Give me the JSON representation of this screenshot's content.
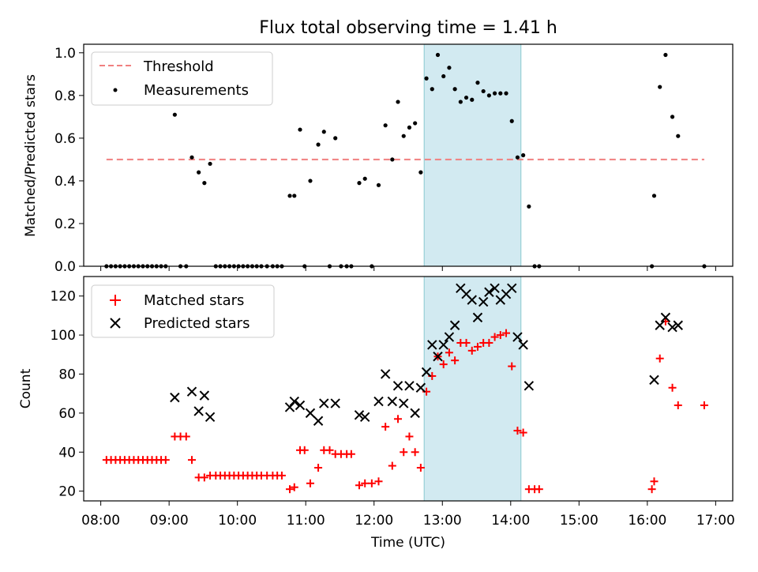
{
  "figure": {
    "title": "Flux total observing time = 1.41 h"
  },
  "chart_data": [
    {
      "type": "scatter",
      "ylabel": "Matched/Predicted stars",
      "xlabel": "",
      "xlim": [
        "07:45",
        "17:15"
      ],
      "ylim": [
        0,
        1.04
      ],
      "yticks": [
        "0.0",
        "0.2",
        "0.4",
        "0.6",
        "0.8",
        "1.0"
      ],
      "highlight_band": {
        "x_start": "12:44",
        "x_end": "14:09",
        "color": "#add8e6"
      },
      "threshold": {
        "name": "Threshold",
        "value": 0.5,
        "x_start": "08:05",
        "x_end": "16:50",
        "color": "#f08080",
        "style": "dashed"
      },
      "legend": {
        "placement": "top-left",
        "entries": [
          "Threshold",
          "Measurements"
        ]
      },
      "series": [
        {
          "name": "Measurements",
          "color": "#000000",
          "points": [
            [
              "08:05",
              0
            ],
            [
              "08:09",
              0
            ],
            [
              "08:13",
              0
            ],
            [
              "08:17",
              0
            ],
            [
              "08:21",
              0
            ],
            [
              "08:25",
              0
            ],
            [
              "08:29",
              0
            ],
            [
              "08:33",
              0
            ],
            [
              "08:37",
              0
            ],
            [
              "08:41",
              0
            ],
            [
              "08:45",
              0
            ],
            [
              "08:49",
              0
            ],
            [
              "08:53",
              0
            ],
            [
              "08:57",
              0
            ],
            [
              "09:05",
              0.71
            ],
            [
              "09:10",
              0
            ],
            [
              "09:15",
              0
            ],
            [
              "09:20",
              0.51
            ],
            [
              "09:26",
              0.44
            ],
            [
              "09:31",
              0.39
            ],
            [
              "09:36",
              0.48
            ],
            [
              "09:41",
              0
            ],
            [
              "09:45",
              0
            ],
            [
              "09:49",
              0
            ],
            [
              "09:53",
              0
            ],
            [
              "09:57",
              0
            ],
            [
              "10:01",
              0
            ],
            [
              "10:05",
              0
            ],
            [
              "10:09",
              0
            ],
            [
              "10:13",
              0
            ],
            [
              "10:17",
              0
            ],
            [
              "10:21",
              0
            ],
            [
              "10:26",
              0
            ],
            [
              "10:31",
              0
            ],
            [
              "10:35",
              0
            ],
            [
              "10:39",
              0
            ],
            [
              "10:46",
              0.33
            ],
            [
              "10:50",
              0.33
            ],
            [
              "10:55",
              0.64
            ],
            [
              "10:59",
              0
            ],
            [
              "11:04",
              0.4
            ],
            [
              "11:11",
              0.57
            ],
            [
              "11:16",
              0.63
            ],
            [
              "11:21",
              0
            ],
            [
              "11:26",
              0.6
            ],
            [
              "11:31",
              0
            ],
            [
              "11:36",
              0
            ],
            [
              "11:40",
              0
            ],
            [
              "11:47",
              0.39
            ],
            [
              "11:52",
              0.41
            ],
            [
              "11:58",
              0
            ],
            [
              "12:04",
              0.38
            ],
            [
              "12:10",
              0.66
            ],
            [
              "12:16",
              0.5
            ],
            [
              "12:21",
              0.77
            ],
            [
              "12:26",
              0.61
            ],
            [
              "12:31",
              0.65
            ],
            [
              "12:36",
              0.67
            ],
            [
              "12:41",
              0.44
            ],
            [
              "12:46",
              0.88
            ],
            [
              "12:51",
              0.83
            ],
            [
              "12:56",
              0.99
            ],
            [
              "13:01",
              0.89
            ],
            [
              "13:06",
              0.93
            ],
            [
              "13:11",
              0.83
            ],
            [
              "13:16",
              0.77
            ],
            [
              "13:21",
              0.79
            ],
            [
              "13:26",
              0.78
            ],
            [
              "13:31",
              0.86
            ],
            [
              "13:36",
              0.82
            ],
            [
              "13:41",
              0.8
            ],
            [
              "13:46",
              0.81
            ],
            [
              "13:51",
              0.81
            ],
            [
              "13:56",
              0.81
            ],
            [
              "14:01",
              0.68
            ],
            [
              "14:06",
              0.51
            ],
            [
              "14:11",
              0.52
            ],
            [
              "14:16",
              0.28
            ],
            [
              "14:21",
              0
            ],
            [
              "14:25",
              0
            ],
            [
              "16:04",
              0
            ],
            [
              "16:06",
              0.33
            ],
            [
              "16:11",
              0.84
            ],
            [
              "16:16",
              0.99
            ],
            [
              "16:22",
              0.7
            ],
            [
              "16:27",
              0.61
            ],
            [
              "16:50",
              0
            ]
          ]
        }
      ]
    },
    {
      "type": "scatter",
      "ylabel": "Count",
      "xlabel": "Time (UTC)",
      "xlim": [
        "07:45",
        "17:15"
      ],
      "ylim": [
        15,
        130
      ],
      "yticks": [
        "20",
        "40",
        "60",
        "80",
        "100",
        "120"
      ],
      "xticks": [
        "08:00",
        "09:00",
        "10:00",
        "11:00",
        "12:00",
        "13:00",
        "14:00",
        "15:00",
        "16:00",
        "17:00"
      ],
      "highlight_band": {
        "x_start": "12:44",
        "x_end": "14:09",
        "color": "#add8e6"
      },
      "legend": {
        "placement": "top-left",
        "entries": [
          "Matched stars",
          "Predicted stars"
        ]
      },
      "series": [
        {
          "name": "Matched stars",
          "marker": "plus",
          "color": "#ff0000",
          "points": [
            [
              "08:05",
              36
            ],
            [
              "08:09",
              36
            ],
            [
              "08:13",
              36
            ],
            [
              "08:17",
              36
            ],
            [
              "08:21",
              36
            ],
            [
              "08:25",
              36
            ],
            [
              "08:29",
              36
            ],
            [
              "08:33",
              36
            ],
            [
              "08:37",
              36
            ],
            [
              "08:41",
              36
            ],
            [
              "08:45",
              36
            ],
            [
              "08:49",
              36
            ],
            [
              "08:53",
              36
            ],
            [
              "08:57",
              36
            ],
            [
              "09:05",
              48
            ],
            [
              "09:10",
              48
            ],
            [
              "09:15",
              48
            ],
            [
              "09:20",
              36
            ],
            [
              "09:26",
              27
            ],
            [
              "09:31",
              27
            ],
            [
              "09:36",
              28
            ],
            [
              "09:41",
              28
            ],
            [
              "09:45",
              28
            ],
            [
              "09:49",
              28
            ],
            [
              "09:53",
              28
            ],
            [
              "09:57",
              28
            ],
            [
              "10:01",
              28
            ],
            [
              "10:05",
              28
            ],
            [
              "10:09",
              28
            ],
            [
              "10:13",
              28
            ],
            [
              "10:17",
              28
            ],
            [
              "10:21",
              28
            ],
            [
              "10:26",
              28
            ],
            [
              "10:31",
              28
            ],
            [
              "10:35",
              28
            ],
            [
              "10:39",
              28
            ],
            [
              "10:46",
              21
            ],
            [
              "10:50",
              22
            ],
            [
              "10:55",
              41
            ],
            [
              "10:59",
              41
            ],
            [
              "11:04",
              24
            ],
            [
              "11:11",
              32
            ],
            [
              "11:16",
              41
            ],
            [
              "11:21",
              41
            ],
            [
              "11:26",
              39
            ],
            [
              "11:31",
              39
            ],
            [
              "11:36",
              39
            ],
            [
              "11:40",
              39
            ],
            [
              "11:47",
              23
            ],
            [
              "11:52",
              24
            ],
            [
              "11:58",
              24
            ],
            [
              "12:04",
              25
            ],
            [
              "12:10",
              53
            ],
            [
              "12:16",
              33
            ],
            [
              "12:21",
              57
            ],
            [
              "12:26",
              40
            ],
            [
              "12:31",
              48
            ],
            [
              "12:36",
              40
            ],
            [
              "12:41",
              32
            ],
            [
              "12:46",
              71
            ],
            [
              "12:51",
              79
            ],
            [
              "12:56",
              89
            ],
            [
              "13:01",
              85
            ],
            [
              "13:06",
              91
            ],
            [
              "13:11",
              87
            ],
            [
              "13:16",
              96
            ],
            [
              "13:21",
              96
            ],
            [
              "13:26",
              92
            ],
            [
              "13:31",
              94
            ],
            [
              "13:36",
              96
            ],
            [
              "13:41",
              96
            ],
            [
              "13:46",
              99
            ],
            [
              "13:51",
              100
            ],
            [
              "13:56",
              101
            ],
            [
              "14:01",
              84
            ],
            [
              "14:06",
              51
            ],
            [
              "14:11",
              50
            ],
            [
              "14:16",
              21
            ],
            [
              "14:21",
              21
            ],
            [
              "14:25",
              21
            ],
            [
              "16:04",
              21
            ],
            [
              "16:06",
              25
            ],
            [
              "16:11",
              88
            ],
            [
              "16:16",
              107
            ],
            [
              "16:22",
              73
            ],
            [
              "16:27",
              64
            ],
            [
              "16:50",
              64
            ]
          ]
        },
        {
          "name": "Predicted stars",
          "marker": "x",
          "color": "#000000",
          "points": [
            [
              "09:05",
              68
            ],
            [
              "09:20",
              71
            ],
            [
              "09:26",
              61
            ],
            [
              "09:31",
              69
            ],
            [
              "09:36",
              58
            ],
            [
              "10:46",
              63
            ],
            [
              "10:50",
              66
            ],
            [
              "10:55",
              64
            ],
            [
              "11:04",
              60
            ],
            [
              "11:11",
              56
            ],
            [
              "11:16",
              65
            ],
            [
              "11:26",
              65
            ],
            [
              "11:47",
              59
            ],
            [
              "11:52",
              58
            ],
            [
              "12:04",
              66
            ],
            [
              "12:10",
              80
            ],
            [
              "12:16",
              66
            ],
            [
              "12:21",
              74
            ],
            [
              "12:26",
              65
            ],
            [
              "12:31",
              74
            ],
            [
              "12:36",
              60
            ],
            [
              "12:41",
              73
            ],
            [
              "12:46",
              81
            ],
            [
              "12:51",
              95
            ],
            [
              "12:56",
              89
            ],
            [
              "13:01",
              95
            ],
            [
              "13:06",
              99
            ],
            [
              "13:11",
              105
            ],
            [
              "13:16",
              124
            ],
            [
              "13:21",
              121
            ],
            [
              "13:26",
              118
            ],
            [
              "13:31",
              109
            ],
            [
              "13:36",
              117
            ],
            [
              "13:41",
              122
            ],
            [
              "13:46",
              124
            ],
            [
              "13:51",
              118
            ],
            [
              "13:56",
              121
            ],
            [
              "14:01",
              124
            ],
            [
              "14:06",
              99
            ],
            [
              "14:11",
              95
            ],
            [
              "14:16",
              74
            ],
            [
              "16:06",
              77
            ],
            [
              "16:11",
              105
            ],
            [
              "16:16",
              109
            ],
            [
              "16:22",
              104
            ],
            [
              "16:27",
              105
            ]
          ]
        }
      ]
    }
  ]
}
